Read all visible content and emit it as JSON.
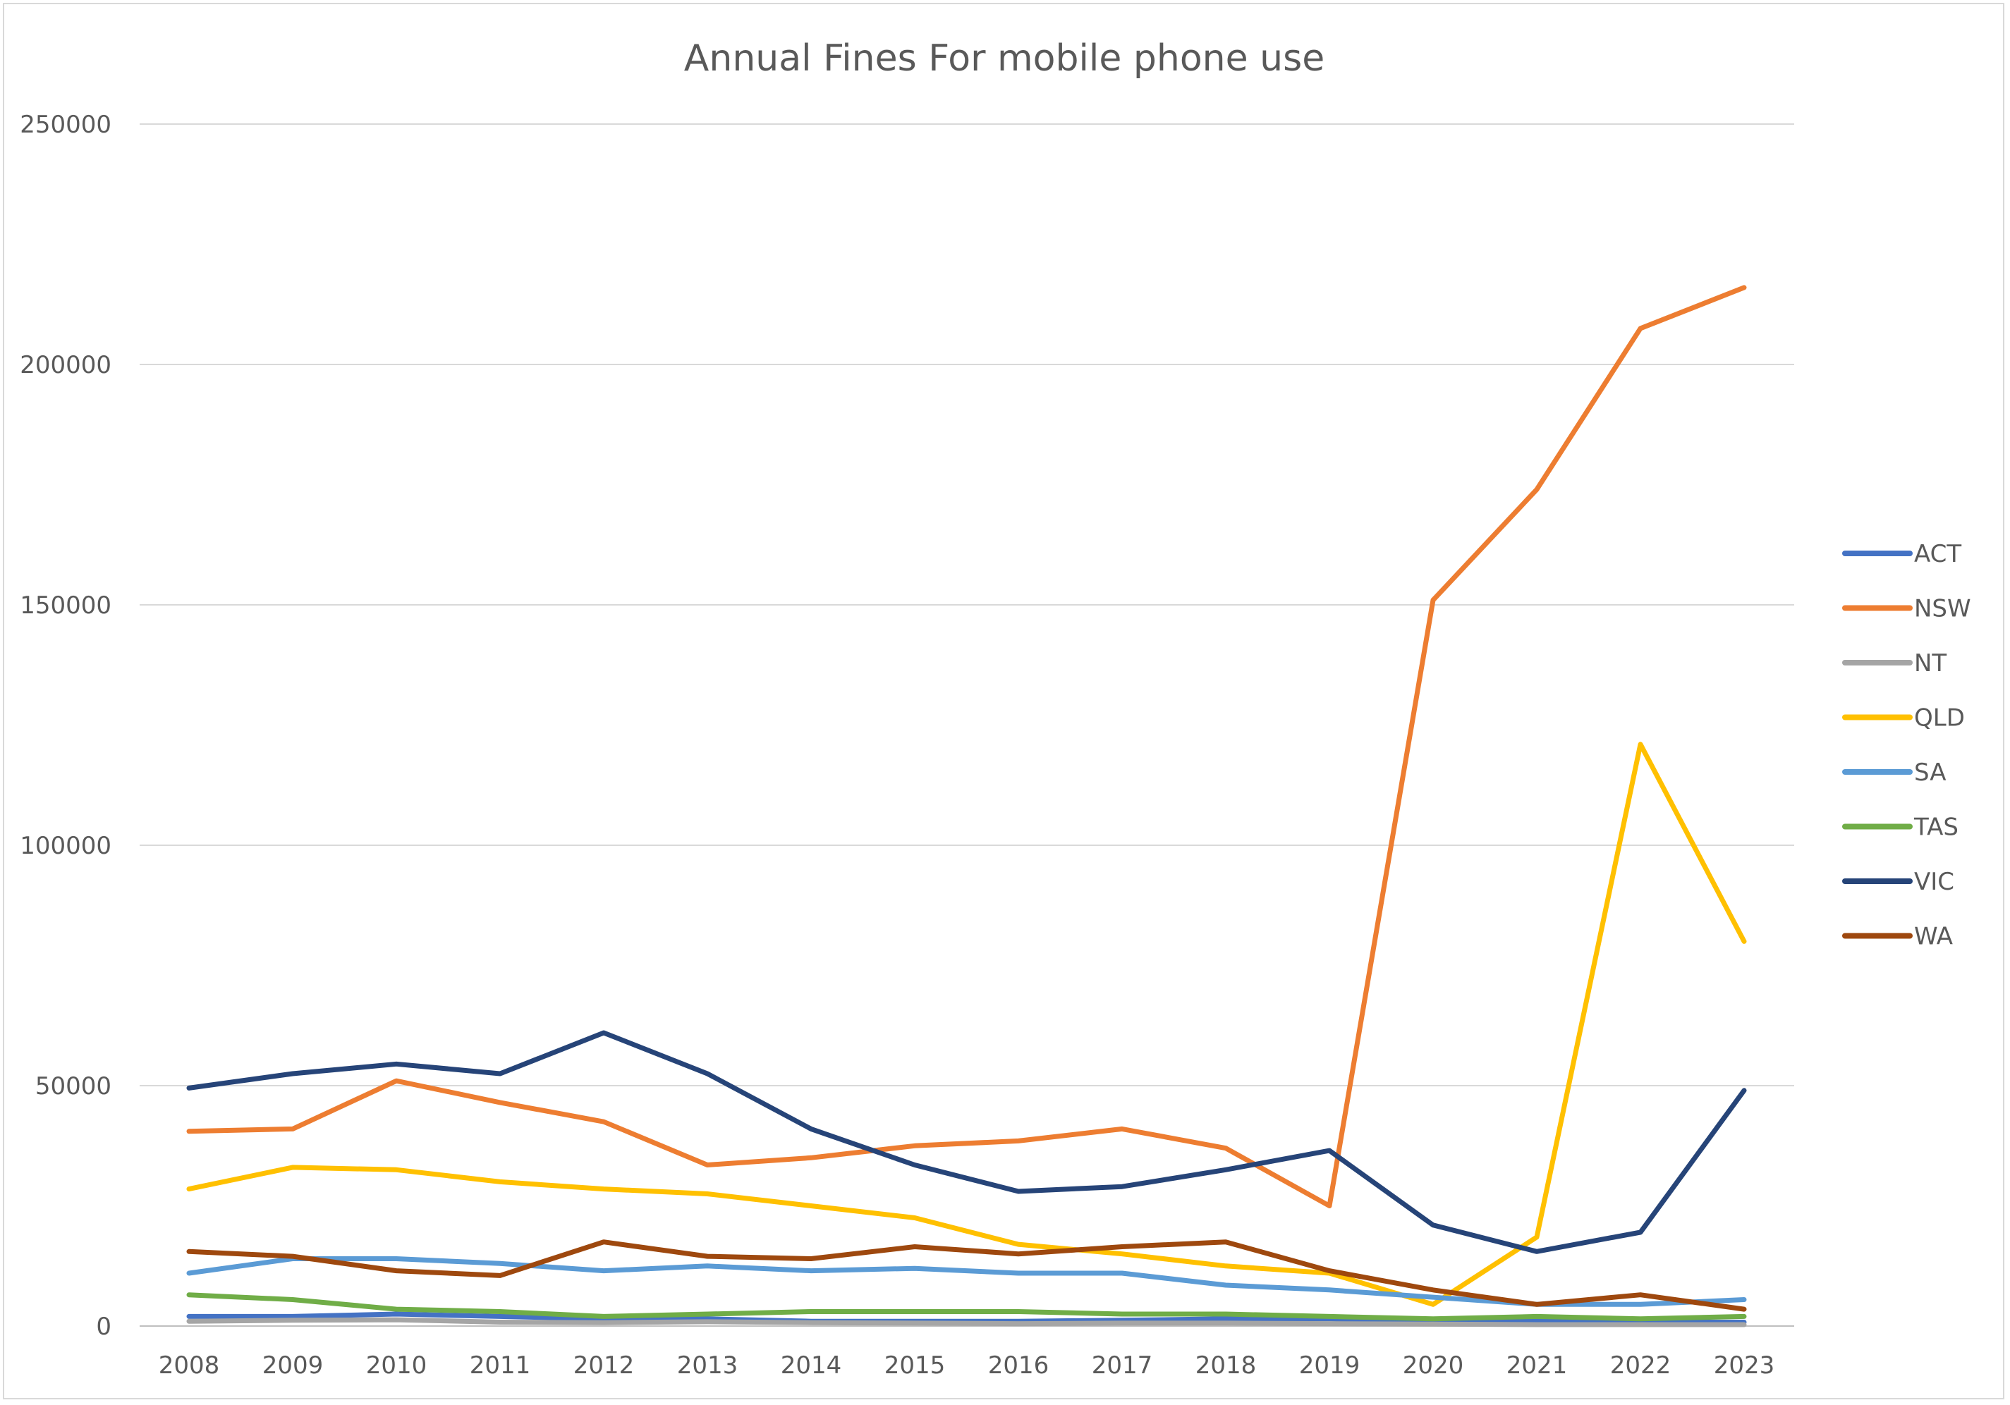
{
  "chart_data": {
    "type": "line",
    "title": "Annual Fines For mobile phone use",
    "xlabel": "",
    "ylabel": "",
    "x": [
      "2008",
      "2009",
      "2010",
      "2011",
      "2012",
      "2013",
      "2014",
      "2015",
      "2016",
      "2017",
      "2018",
      "2019",
      "2020",
      "2021",
      "2022",
      "2023"
    ],
    "ylim": [
      0,
      250000
    ],
    "yticks": [
      "0",
      "50000",
      "100000",
      "150000",
      "200000",
      "250000"
    ],
    "grid": true,
    "legend_position": "right",
    "series": [
      {
        "name": "ACT",
        "color": "#4472c4",
        "values": [
          2000,
          2000,
          2500,
          2000,
          1500,
          1500,
          1000,
          1000,
          1000,
          1200,
          1500,
          1500,
          1000,
          1000,
          800,
          800
        ]
      },
      {
        "name": "NSW",
        "color": "#ed7d31",
        "values": [
          40500,
          41000,
          51000,
          46500,
          42500,
          33500,
          35000,
          37500,
          38500,
          41000,
          37000,
          25000,
          151000,
          174000,
          207500,
          216000
        ]
      },
      {
        "name": "NT",
        "color": "#a5a5a5",
        "values": [
          1000,
          1200,
          1300,
          800,
          700,
          900,
          700,
          600,
          500,
          600,
          600,
          500,
          400,
          300,
          300,
          300
        ]
      },
      {
        "name": "QLD",
        "color": "#ffc000",
        "values": [
          28500,
          33000,
          32500,
          30000,
          28500,
          27500,
          25000,
          22500,
          17000,
          15000,
          12500,
          11000,
          4500,
          18500,
          121000,
          80000
        ]
      },
      {
        "name": "SA",
        "color": "#5b9bd5",
        "values": [
          11000,
          14000,
          14000,
          13000,
          11500,
          12500,
          11500,
          12000,
          11000,
          11000,
          8500,
          7500,
          6000,
          4500,
          4500,
          5500
        ]
      },
      {
        "name": "TAS",
        "color": "#70ad47",
        "values": [
          6500,
          5500,
          3500,
          3000,
          2000,
          2500,
          3000,
          3000,
          3000,
          2500,
          2500,
          2000,
          1500,
          2000,
          1500,
          2000
        ]
      },
      {
        "name": "VIC",
        "color": "#264478",
        "values": [
          49500,
          52500,
          54500,
          52500,
          61000,
          52500,
          41000,
          33500,
          28000,
          29000,
          32500,
          36500,
          21000,
          15500,
          19500,
          49000
        ]
      },
      {
        "name": "WA",
        "color": "#9e480e",
        "values": [
          15500,
          14500,
          11500,
          10500,
          17500,
          14500,
          14000,
          16500,
          15000,
          16500,
          17500,
          11500,
          7500,
          4500,
          6500,
          3500
        ]
      }
    ]
  }
}
